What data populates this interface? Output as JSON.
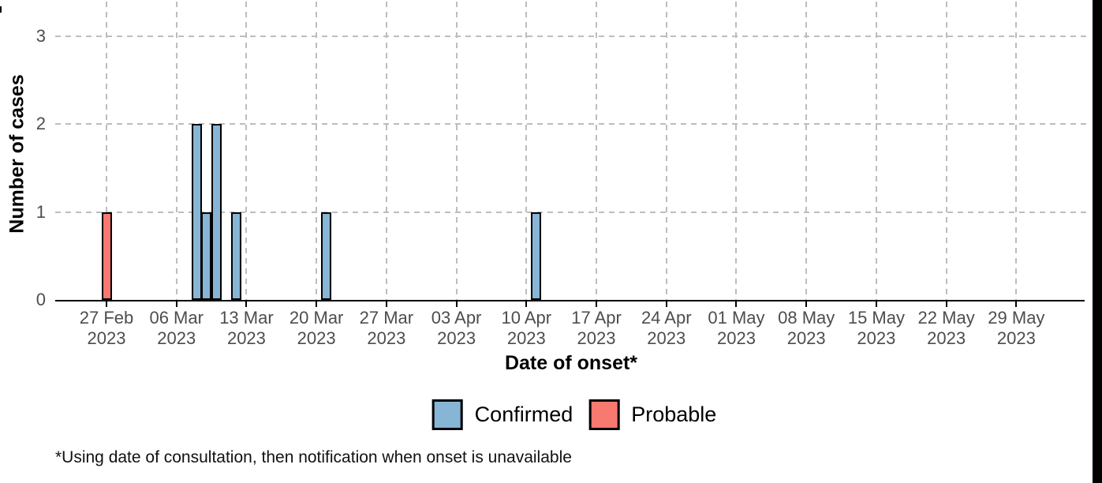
{
  "chart_data": {
    "type": "bar",
    "title": "",
    "xlabel": "Date of onset*",
    "ylabel": "Number of cases",
    "x_tick_origin_date": "2023-02-27",
    "x_ticks": [
      {
        "label": "27 Feb",
        "year": "2023",
        "date": "2023-02-27"
      },
      {
        "label": "06 Mar",
        "year": "2023",
        "date": "2023-03-06"
      },
      {
        "label": "13 Mar",
        "year": "2023",
        "date": "2023-03-13"
      },
      {
        "label": "20 Mar",
        "year": "2023",
        "date": "2023-03-20"
      },
      {
        "label": "27 Mar",
        "year": "2023",
        "date": "2023-03-27"
      },
      {
        "label": "03 Apr",
        "year": "2023",
        "date": "2023-04-03"
      },
      {
        "label": "10 Apr",
        "year": "2023",
        "date": "2023-04-10"
      },
      {
        "label": "17 Apr",
        "year": "2023",
        "date": "2023-04-17"
      },
      {
        "label": "24 Apr",
        "year": "2023",
        "date": "2023-04-24"
      },
      {
        "label": "01 May",
        "year": "2023",
        "date": "2023-05-01"
      },
      {
        "label": "08 May",
        "year": "2023",
        "date": "2023-05-08"
      },
      {
        "label": "15 May",
        "year": "2023",
        "date": "2023-05-15"
      },
      {
        "label": "22 May",
        "year": "2023",
        "date": "2023-05-22"
      },
      {
        "label": "29 May",
        "year": "2023",
        "date": "2023-05-29"
      }
    ],
    "y_ticks": [
      "0",
      "1",
      "2",
      "3"
    ],
    "ylim": [
      0,
      3.4
    ],
    "grid": "dashed major gridlines, horizontal at 1/2/3 and vertical at weekly ticks",
    "bars": [
      {
        "date": "2023-02-27",
        "count": 1,
        "category": "Probable"
      },
      {
        "date": "2023-03-08",
        "count": 2,
        "category": "Confirmed"
      },
      {
        "date": "2023-03-09",
        "count": 1,
        "category": "Confirmed"
      },
      {
        "date": "2023-03-10",
        "count": 2,
        "category": "Confirmed"
      },
      {
        "date": "2023-03-12",
        "count": 1,
        "category": "Confirmed"
      },
      {
        "date": "2023-03-21",
        "count": 1,
        "category": "Confirmed"
      },
      {
        "date": "2023-04-11",
        "count": 1,
        "category": "Confirmed"
      }
    ],
    "legend_position": "bottom",
    "legend": [
      {
        "label": "Confirmed",
        "color": "#86B5D6"
      },
      {
        "label": "Probable",
        "color": "#F8796F"
      }
    ]
  },
  "footnote": "*Using date of consultation, then notification when onset is unavailable",
  "colors": {
    "confirmed_fill": "#86B5D6",
    "probable_fill": "#F8796F",
    "bar_stroke": "#000000",
    "gridline": "#BDBDBD",
    "axis_text": "#4D4D4D",
    "axis_line": "#000000",
    "edge_strip": "#000000"
  }
}
